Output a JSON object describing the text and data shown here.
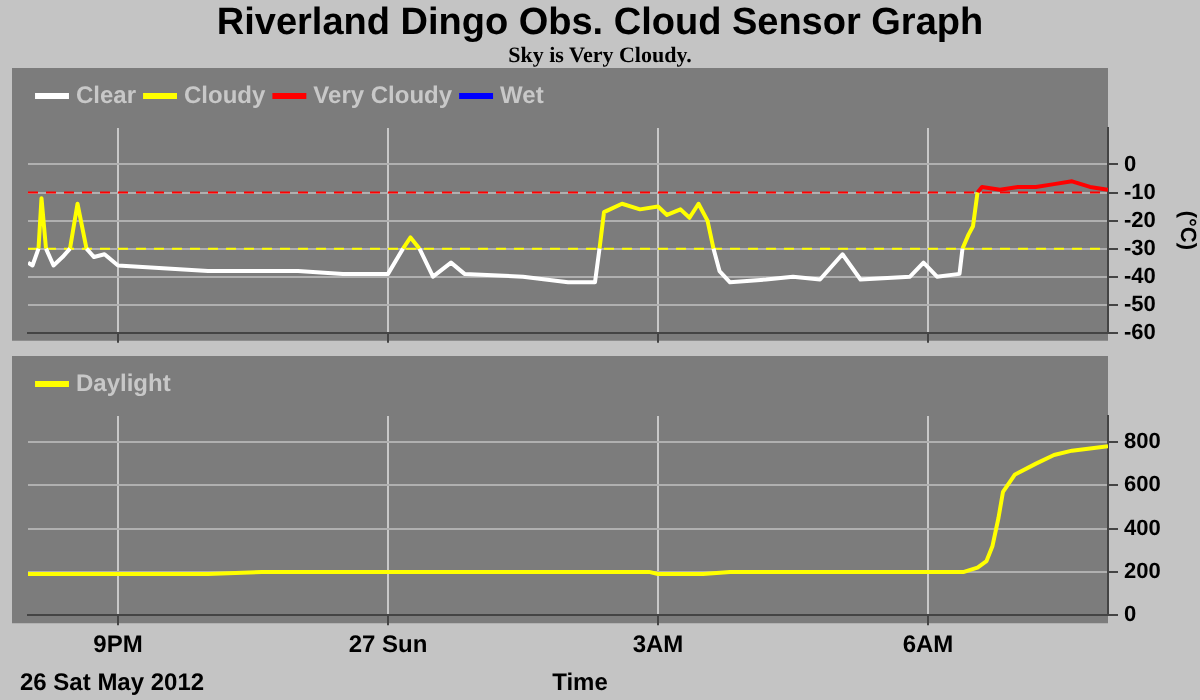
{
  "chart_data": [
    {
      "type": "line",
      "title": "Riverland Dingo Obs. Cloud Sensor Graph",
      "subtitle": "Sky is Very Cloudy.",
      "ylabel": "(°C)",
      "legend": "top left",
      "grid": true,
      "tick_labels": "y",
      "xlim": [
        "2012-05-26T20:00",
        "2012-05-27T08:00"
      ],
      "xticks": [
        {
          "value": "2012-05-26T21:00",
          "label": null
        },
        {
          "value": "2012-05-27T00:00",
          "label": null
        },
        {
          "value": "2012-05-27T03:00",
          "label": null
        },
        {
          "value": "2012-05-27T06:00",
          "label": null
        }
      ],
      "ylim": [
        -60,
        13
      ],
      "yticks": [
        -60,
        -50,
        -40,
        -30,
        -20,
        -10,
        0
      ],
      "ref_lines": [
        {
          "axis": "y",
          "value": -10,
          "color": "#ff0000",
          "line_style": "dashed"
        },
        {
          "axis": "y",
          "value": -30,
          "color": "#ffff00",
          "line_style": "dashed"
        }
      ],
      "series": [
        {
          "name": "Clear",
          "color": "#ffffff",
          "x": [
            "2012-05-26T20:00",
            "2012-05-26T20:03",
            "2012-05-26T20:07",
            "2012-05-26T20:10",
            "2012-05-26T20:12",
            "2012-05-26T20:17",
            "2012-05-26T20:23",
            "2012-05-26T20:28",
            "2012-05-26T20:33",
            "2012-05-26T20:39",
            "2012-05-26T20:44",
            "2012-05-26T20:51",
            "2012-05-26T21:00",
            "2012-05-26T21:30",
            "2012-05-26T22:00",
            "2012-05-26T22:30",
            "2012-05-26T23:00",
            "2012-05-26T23:30",
            "2012-05-27T00:00",
            "2012-05-27T00:10",
            "2012-05-27T00:15",
            "2012-05-27T00:21",
            "2012-05-27T00:30",
            "2012-05-27T00:42",
            "2012-05-27T00:51",
            "2012-05-27T01:30",
            "2012-05-27T02:00",
            "2012-05-27T02:18",
            "2012-05-27T02:21",
            "2012-05-27T03:00",
            "2012-05-27T03:37",
            "2012-05-27T03:41",
            "2012-05-27T03:48",
            "2012-05-27T04:12",
            "2012-05-27T04:30",
            "2012-05-27T04:48",
            "2012-05-27T05:03",
            "2012-05-27T05:15",
            "2012-05-27T05:48",
            "2012-05-27T05:57",
            "2012-05-27T06:06",
            "2012-05-27T06:21",
            "2012-05-27T06:23"
          ],
          "values": [
            -35,
            -36,
            -30,
            null,
            -30,
            -36,
            -33,
            -30,
            null,
            -30,
            -33,
            -32,
            -36,
            -37,
            -38,
            -38,
            -38,
            -39,
            -39,
            -30,
            null,
            -30,
            -40,
            -35,
            -39,
            -40,
            -42,
            -42,
            -30,
            null,
            -30,
            -38,
            -42,
            -41,
            -40,
            -41,
            -32,
            -41,
            -40,
            -35,
            -40,
            -39,
            -30
          ]
        },
        {
          "name": "Cloudy",
          "color": "#ffff00",
          "x": [
            "2012-05-26T20:07",
            "2012-05-26T20:09",
            "2012-05-26T20:12",
            "2012-05-26T20:18",
            "2012-05-26T20:28",
            "2012-05-26T20:33",
            "2012-05-26T20:39",
            "2012-05-26T22:00",
            "2012-05-27T00:10",
            "2012-05-27T00:15",
            "2012-05-27T00:21",
            "2012-05-27T01:00",
            "2012-05-27T02:21",
            "2012-05-27T02:24",
            "2012-05-27T02:36",
            "2012-05-27T02:48",
            "2012-05-27T03:00",
            "2012-05-27T03:06",
            "2012-05-27T03:15",
            "2012-05-27T03:21",
            "2012-05-27T03:27",
            "2012-05-27T03:33",
            "2012-05-27T03:37",
            "2012-05-27T05:00",
            "2012-05-27T06:23",
            "2012-05-27T06:27",
            "2012-05-27T06:30",
            "2012-05-27T06:33"
          ],
          "values": [
            -30,
            -12,
            -30,
            null,
            -30,
            -14,
            -30,
            null,
            -30,
            -26,
            -30,
            null,
            -30,
            -17,
            -14,
            -16,
            -15,
            -18,
            -16,
            -19,
            -14,
            -20,
            -30,
            null,
            -30,
            -25,
            -22,
            -10
          ]
        },
        {
          "name": "Very Cloudy",
          "color": "#ff0000",
          "x": [
            "2012-05-27T06:33",
            "2012-05-27T06:36",
            "2012-05-27T06:48",
            "2012-05-27T07:00",
            "2012-05-27T07:12",
            "2012-05-27T07:24",
            "2012-05-27T07:36",
            "2012-05-27T07:48",
            "2012-05-27T08:00"
          ],
          "values": [
            -10,
            -8,
            -9,
            -8,
            -8,
            -7,
            -6,
            -8,
            -9
          ]
        },
        {
          "name": "Wet",
          "color": "#0000ff"
        }
      ]
    },
    {
      "type": "line",
      "xlabel": "Time",
      "annotations": [
        "26 Sat May 2012"
      ],
      "legend": "top left",
      "grid": true,
      "xlim": [
        "2012-05-26T20:00",
        "2012-05-27T08:00"
      ],
      "xticks": [
        {
          "value": "2012-05-26T21:00",
          "label": "9PM"
        },
        {
          "value": "2012-05-27T00:00",
          "label": "27 Sun"
        },
        {
          "value": "2012-05-27T03:00",
          "label": "3AM"
        },
        {
          "value": "2012-05-27T06:00",
          "label": "6AM"
        }
      ],
      "ylim": [
        0,
        920
      ],
      "yticks": [
        0,
        200,
        400,
        600,
        800
      ],
      "series": [
        {
          "name": "Daylight",
          "color": "#ffff00",
          "x": [
            "2012-05-26T20:00",
            "2012-05-26T21:00",
            "2012-05-26T22:00",
            "2012-05-26T22:36",
            "2012-05-26T23:00",
            "2012-05-27T00:00",
            "2012-05-27T01:00",
            "2012-05-27T02:00",
            "2012-05-27T02:54",
            "2012-05-27T03:00",
            "2012-05-27T03:30",
            "2012-05-27T03:48",
            "2012-05-27T04:30",
            "2012-05-27T05:30",
            "2012-05-27T06:00",
            "2012-05-27T06:24",
            "2012-05-27T06:33",
            "2012-05-27T06:39",
            "2012-05-27T06:43",
            "2012-05-27T06:47",
            "2012-05-27T06:50",
            "2012-05-27T06:58",
            "2012-05-27T07:12",
            "2012-05-27T07:24",
            "2012-05-27T07:36",
            "2012-05-27T07:48",
            "2012-05-27T08:00"
          ],
          "values": [
            190,
            190,
            190,
            200,
            200,
            200,
            200,
            200,
            200,
            190,
            190,
            200,
            200,
            200,
            200,
            200,
            220,
            250,
            320,
            450,
            570,
            650,
            700,
            740,
            760,
            770,
            780
          ]
        }
      ]
    }
  ]
}
